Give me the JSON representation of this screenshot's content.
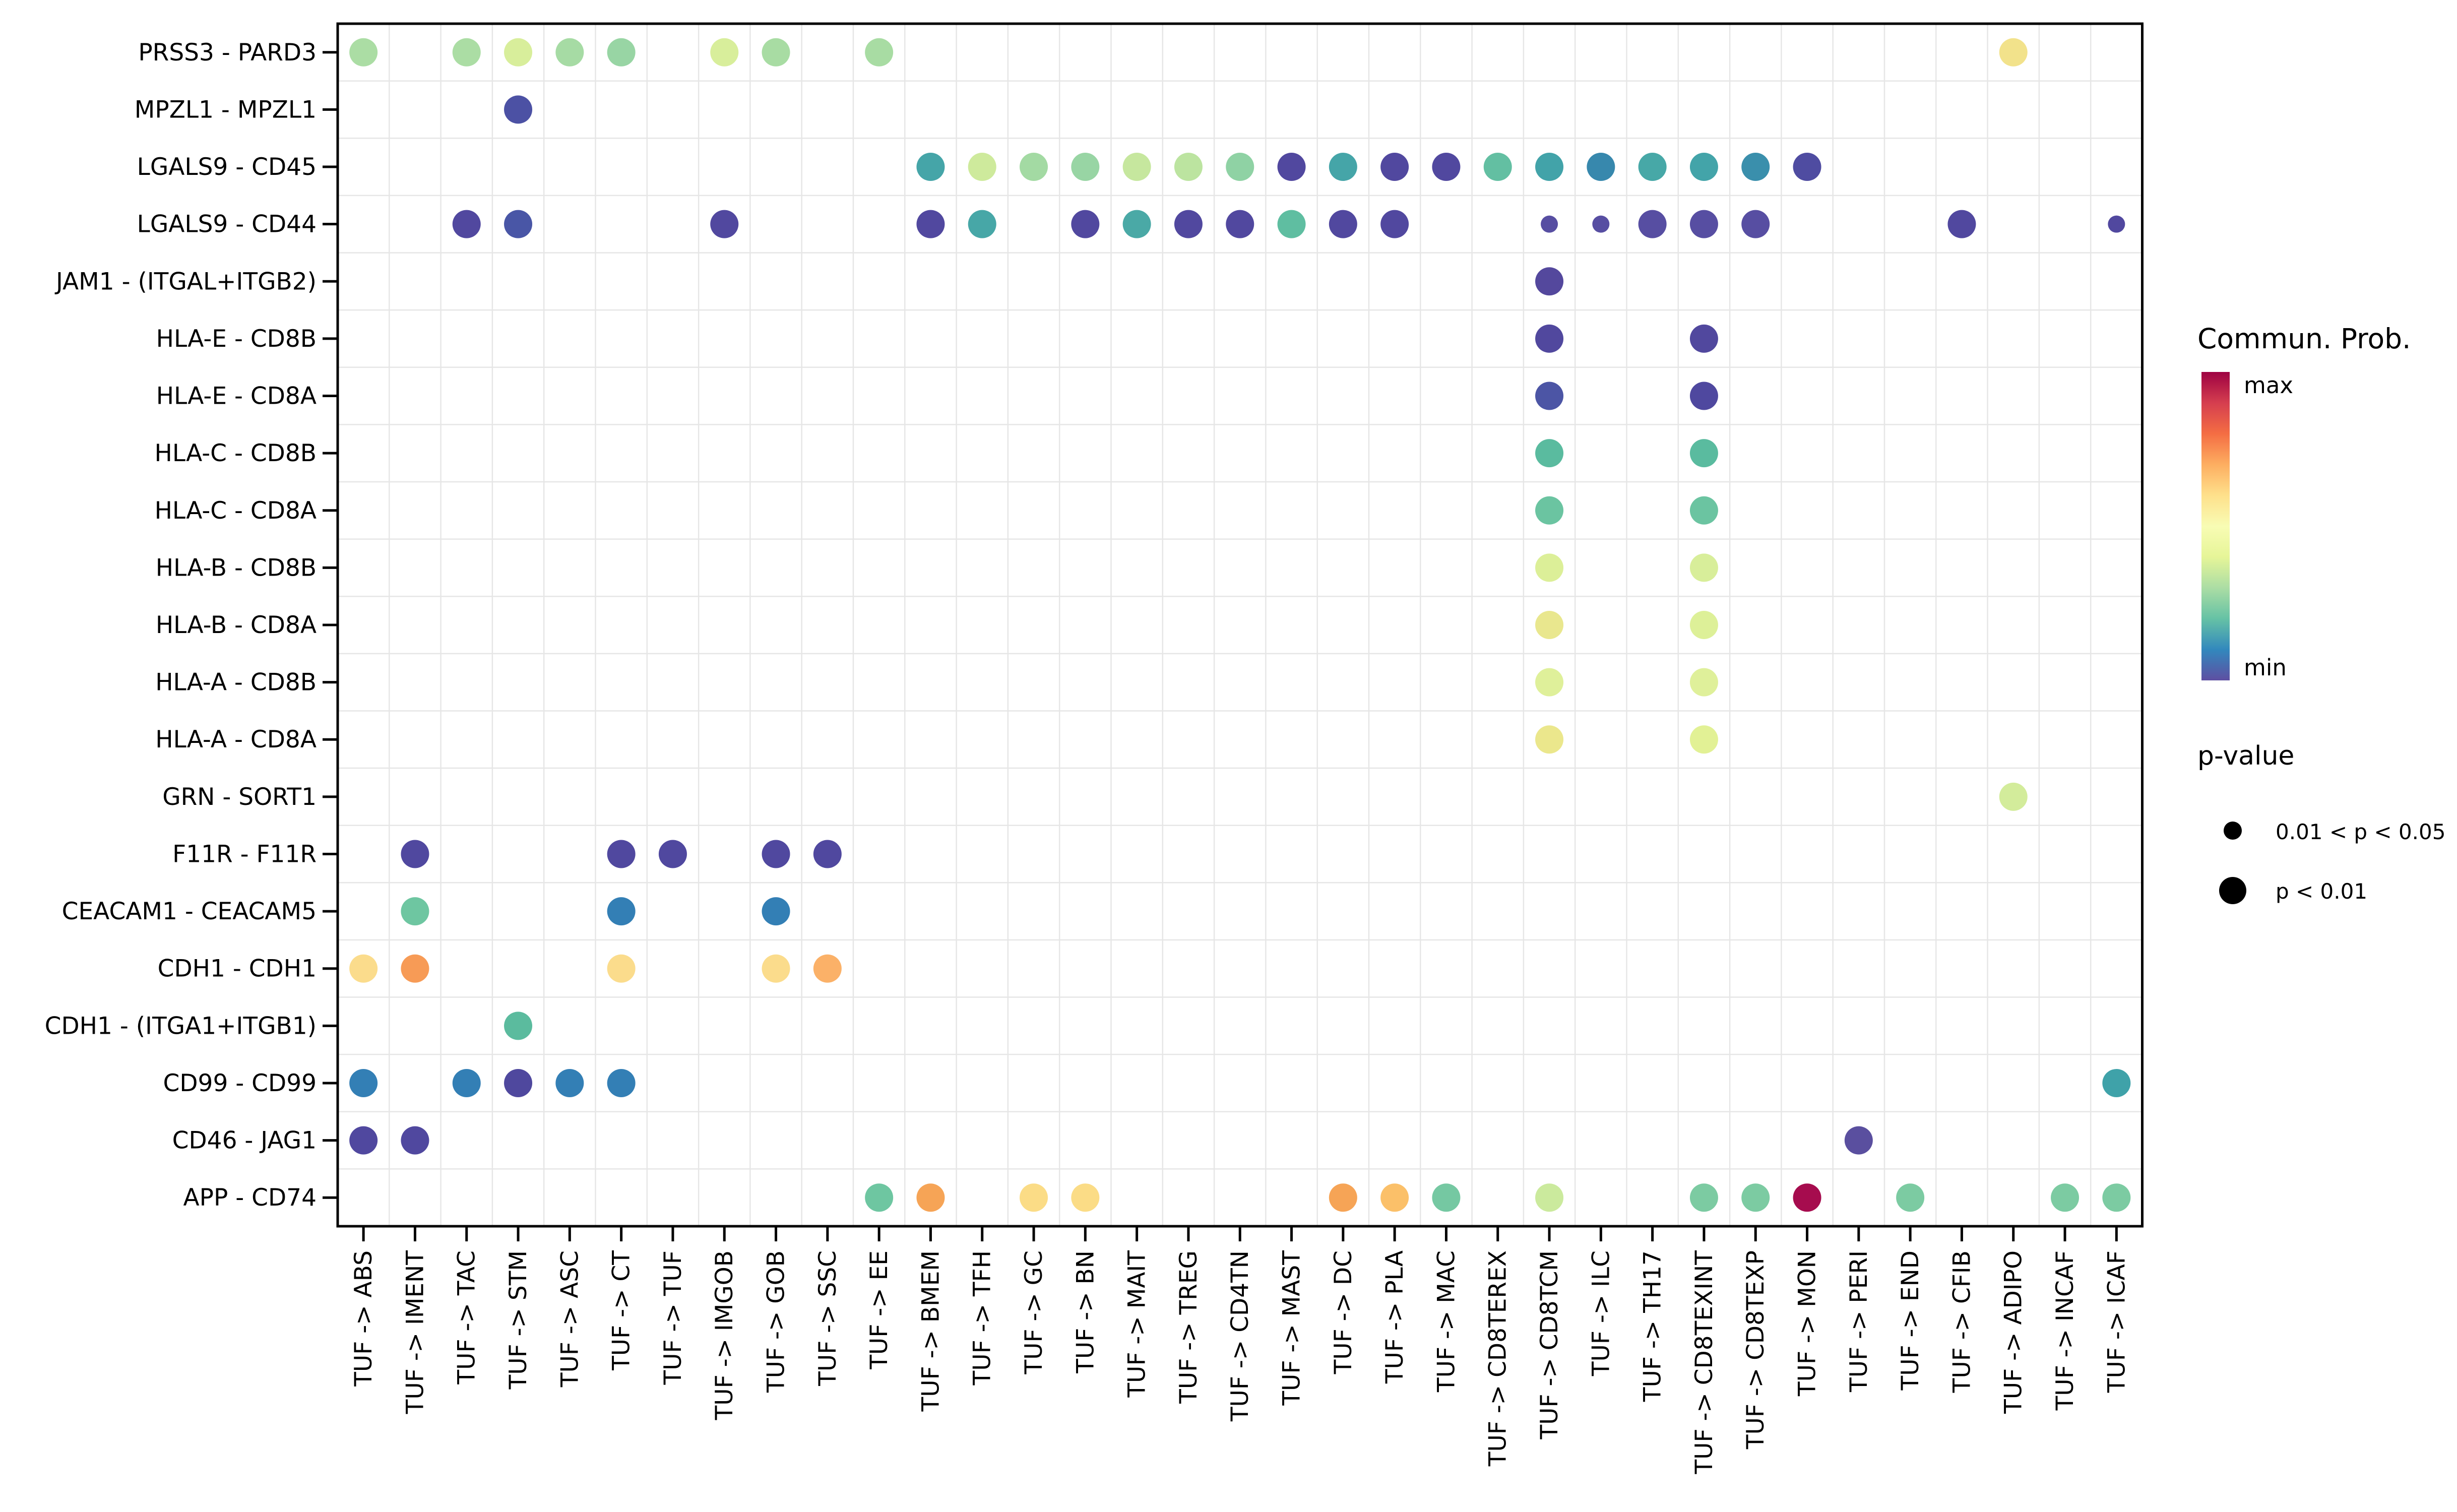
{
  "chart_data": {
    "type": "scatter",
    "subtype": "bubble-dotplot (cell-cell communication, CellChat-style)",
    "title": "",
    "xlabel": "",
    "ylabel": "",
    "grid": "on",
    "legend_position": "right",
    "x_categories": [
      "TUF -> ABS",
      "TUF -> IMENT",
      "TUF -> TAC",
      "TUF -> STM",
      "TUF -> ASC",
      "TUF -> CT",
      "TUF -> TUF",
      "TUF -> IMGOB",
      "TUF -> GOB",
      "TUF -> SSC",
      "TUF -> EE",
      "TUF -> BMEM",
      "TUF -> TFH",
      "TUF -> GC",
      "TUF -> BN",
      "TUF -> MAIT",
      "TUF -> TREG",
      "TUF -> CD4TN",
      "TUF -> MAST",
      "TUF -> DC",
      "TUF -> PLA",
      "TUF -> MAC",
      "TUF -> CD8TEREX",
      "TUF -> CD8TCM",
      "TUF -> ILC",
      "TUF -> TH17",
      "TUF -> CD8TEXINT",
      "TUF -> CD8TEXP",
      "TUF -> MON",
      "TUF -> PERI",
      "TUF -> END",
      "TUF -> CFIB",
      "TUF -> ADIPO",
      "TUF -> INCAF",
      "TUF -> ICAF"
    ],
    "y_categories": [
      "PRSS3 - PARD3",
      "MPZL1 - MPZL1",
      "LGALS9 - CD45",
      "LGALS9 - CD44",
      "JAM1 - (ITGAL+ITGB2)",
      "HLA-E - CD8B",
      "HLA-E - CD8A",
      "HLA-C - CD8B",
      "HLA-C - CD8A",
      "HLA-B - CD8B",
      "HLA-B - CD8A",
      "HLA-A - CD8B",
      "HLA-A - CD8A",
      "GRN - SORT1",
      "F11R - F11R",
      "CEACAM1 - CEACAM5",
      "CDH1 - CDH1",
      "CDH1 - (ITGA1+ITGB1)",
      "CD99 - CD99",
      "CD46 - JAG1",
      "APP - CD74"
    ],
    "point_format": "[y_row_index_1based, x_col_index_1based, dot_color_hex, size_class L=p<0.01 S=0.01<p<0.05]",
    "points": [
      [
        1,
        1,
        "#ABDDA4",
        "L"
      ],
      [
        1,
        3,
        "#ABDDA4",
        "L"
      ],
      [
        1,
        4,
        "#D8EE9B",
        "L"
      ],
      [
        1,
        5,
        "#A6DBA4",
        "L"
      ],
      [
        1,
        6,
        "#98D5A4",
        "L"
      ],
      [
        1,
        8,
        "#D8EE9B",
        "L"
      ],
      [
        1,
        9,
        "#A8DCA3",
        "L"
      ],
      [
        1,
        11,
        "#A8DCA3",
        "L"
      ],
      [
        1,
        33,
        "#F2E28B",
        "L"
      ],
      [
        2,
        4,
        "#4C51A4",
        "L"
      ],
      [
        3,
        12,
        "#45A5A8",
        "L"
      ],
      [
        3,
        13,
        "#CEEA9C",
        "L"
      ],
      [
        3,
        14,
        "#A3DAA3",
        "L"
      ],
      [
        3,
        15,
        "#98D5A4",
        "L"
      ],
      [
        3,
        16,
        "#C6E79E",
        "L"
      ],
      [
        3,
        17,
        "#BCE4A0",
        "L"
      ],
      [
        3,
        18,
        "#8FD2A4",
        "L"
      ],
      [
        3,
        19,
        "#51489F",
        "L"
      ],
      [
        3,
        20,
        "#45A5A8",
        "L"
      ],
      [
        3,
        21,
        "#51489F",
        "L"
      ],
      [
        3,
        22,
        "#51489F",
        "L"
      ],
      [
        3,
        23,
        "#63BFA2",
        "L"
      ],
      [
        3,
        24,
        "#42A3A9",
        "L"
      ],
      [
        3,
        25,
        "#3788AD",
        "L"
      ],
      [
        3,
        26,
        "#47A8A7",
        "L"
      ],
      [
        3,
        27,
        "#43A4A9",
        "L"
      ],
      [
        3,
        28,
        "#3A8FAC",
        "L"
      ],
      [
        3,
        29,
        "#4F4CA1",
        "L"
      ],
      [
        4,
        3,
        "#51489F",
        "L"
      ],
      [
        4,
        4,
        "#4956A6",
        "L"
      ],
      [
        4,
        8,
        "#51489F",
        "L"
      ],
      [
        4,
        12,
        "#51489F",
        "L"
      ],
      [
        4,
        13,
        "#47A7A7",
        "L"
      ],
      [
        4,
        15,
        "#51489F",
        "L"
      ],
      [
        4,
        16,
        "#4AA9A6",
        "L"
      ],
      [
        4,
        17,
        "#51489F",
        "L"
      ],
      [
        4,
        18,
        "#51489F",
        "L"
      ],
      [
        4,
        19,
        "#5FBEA1",
        "L"
      ],
      [
        4,
        20,
        "#51489F",
        "L"
      ],
      [
        4,
        21,
        "#51489F",
        "L"
      ],
      [
        4,
        24,
        "#574EA2",
        "S"
      ],
      [
        4,
        25,
        "#574EA2",
        "S"
      ],
      [
        4,
        26,
        "#574EA2",
        "L"
      ],
      [
        4,
        27,
        "#574EA2",
        "L"
      ],
      [
        4,
        28,
        "#574EA2",
        "L"
      ],
      [
        4,
        32,
        "#51489F",
        "L"
      ],
      [
        4,
        35,
        "#51489F",
        "S"
      ],
      [
        5,
        24,
        "#54489D",
        "L"
      ],
      [
        6,
        24,
        "#51489E",
        "L"
      ],
      [
        6,
        27,
        "#51489E",
        "L"
      ],
      [
        7,
        24,
        "#4C55A5",
        "L"
      ],
      [
        7,
        27,
        "#4F489F",
        "L"
      ],
      [
        8,
        24,
        "#5ABB9F",
        "L"
      ],
      [
        8,
        27,
        "#5ABB9F",
        "L"
      ],
      [
        9,
        24,
        "#6BC4A1",
        "L"
      ],
      [
        9,
        27,
        "#6BC4A1",
        "L"
      ],
      [
        10,
        24,
        "#DCEF98",
        "L"
      ],
      [
        10,
        27,
        "#D8EE9A",
        "L"
      ],
      [
        11,
        24,
        "#E9E78E",
        "L"
      ],
      [
        11,
        27,
        "#DDF098",
        "L"
      ],
      [
        12,
        24,
        "#DFF09A",
        "L"
      ],
      [
        12,
        27,
        "#DFF09A",
        "L"
      ],
      [
        13,
        24,
        "#EBE78C",
        "L"
      ],
      [
        13,
        27,
        "#E2F195",
        "L"
      ],
      [
        14,
        33,
        "#D3EC9B",
        "L"
      ],
      [
        15,
        2,
        "#50489F",
        "L"
      ],
      [
        15,
        6,
        "#50489F",
        "L"
      ],
      [
        15,
        7,
        "#50489F",
        "L"
      ],
      [
        15,
        9,
        "#50489F",
        "L"
      ],
      [
        15,
        10,
        "#50489F",
        "L"
      ],
      [
        16,
        2,
        "#6EC6A1",
        "L"
      ],
      [
        16,
        6,
        "#337FB5",
        "L"
      ],
      [
        16,
        9,
        "#337FB5",
        "L"
      ],
      [
        17,
        1,
        "#FBDC8C",
        "L"
      ],
      [
        17,
        2,
        "#F79B56",
        "L"
      ],
      [
        17,
        6,
        "#FBDC8C",
        "L"
      ],
      [
        17,
        9,
        "#FBDC8C",
        "L"
      ],
      [
        17,
        10,
        "#FBB168",
        "L"
      ],
      [
        18,
        4,
        "#5BBB9E",
        "L"
      ],
      [
        19,
        1,
        "#337FB5",
        "L"
      ],
      [
        19,
        3,
        "#337FB5",
        "L"
      ],
      [
        19,
        4,
        "#4F489E",
        "L"
      ],
      [
        19,
        5,
        "#337FB5",
        "L"
      ],
      [
        19,
        6,
        "#337FB5",
        "L"
      ],
      [
        19,
        35,
        "#3FA2A9",
        "L"
      ],
      [
        20,
        1,
        "#50489F",
        "L"
      ],
      [
        20,
        2,
        "#50489F",
        "L"
      ],
      [
        20,
        30,
        "#5A4F9F",
        "L"
      ],
      [
        21,
        11,
        "#6EC6A1",
        "L"
      ],
      [
        21,
        12,
        "#F6A456",
        "L"
      ],
      [
        21,
        14,
        "#FBDC86",
        "L"
      ],
      [
        21,
        15,
        "#FBDC86",
        "L"
      ],
      [
        21,
        20,
        "#F6A456",
        "L"
      ],
      [
        21,
        21,
        "#FBC069",
        "L"
      ],
      [
        21,
        22,
        "#75C8A2",
        "L"
      ],
      [
        21,
        24,
        "#CBEA9D",
        "L"
      ],
      [
        21,
        27,
        "#7CCBA2",
        "L"
      ],
      [
        21,
        28,
        "#7CCBA2",
        "L"
      ],
      [
        21,
        29,
        "#A60C4E",
        "L"
      ],
      [
        21,
        31,
        "#7CCBA2",
        "L"
      ],
      [
        21,
        34,
        "#7CCBA2",
        "L"
      ],
      [
        21,
        35,
        "#7CCBA2",
        "L"
      ]
    ],
    "legend": {
      "colorbar": {
        "title": "Commun. Prob.",
        "max_label": "max",
        "min_label": "min",
        "gradient_top_to_bottom": [
          "#9E0142",
          "#D53E4F",
          "#F46D43",
          "#FDAE61",
          "#FEE08B",
          "#F8FCB4",
          "#E6F598",
          "#ABDDA4",
          "#66C2A5",
          "#3288BD",
          "#5E4FA2"
        ]
      },
      "pvalue": {
        "title": "p-value",
        "items": [
          {
            "label": "0.01 < p < 0.05",
            "size": "small"
          },
          {
            "label": "p < 0.01",
            "size": "large"
          }
        ]
      }
    },
    "style": {
      "background": "#FFFFFF",
      "panel_border_color": "#000000",
      "grid_color": "#E6E6E6",
      "text_color": "#000000",
      "max_color": "#9E0142",
      "min_color": "#5E4FA2"
    }
  }
}
